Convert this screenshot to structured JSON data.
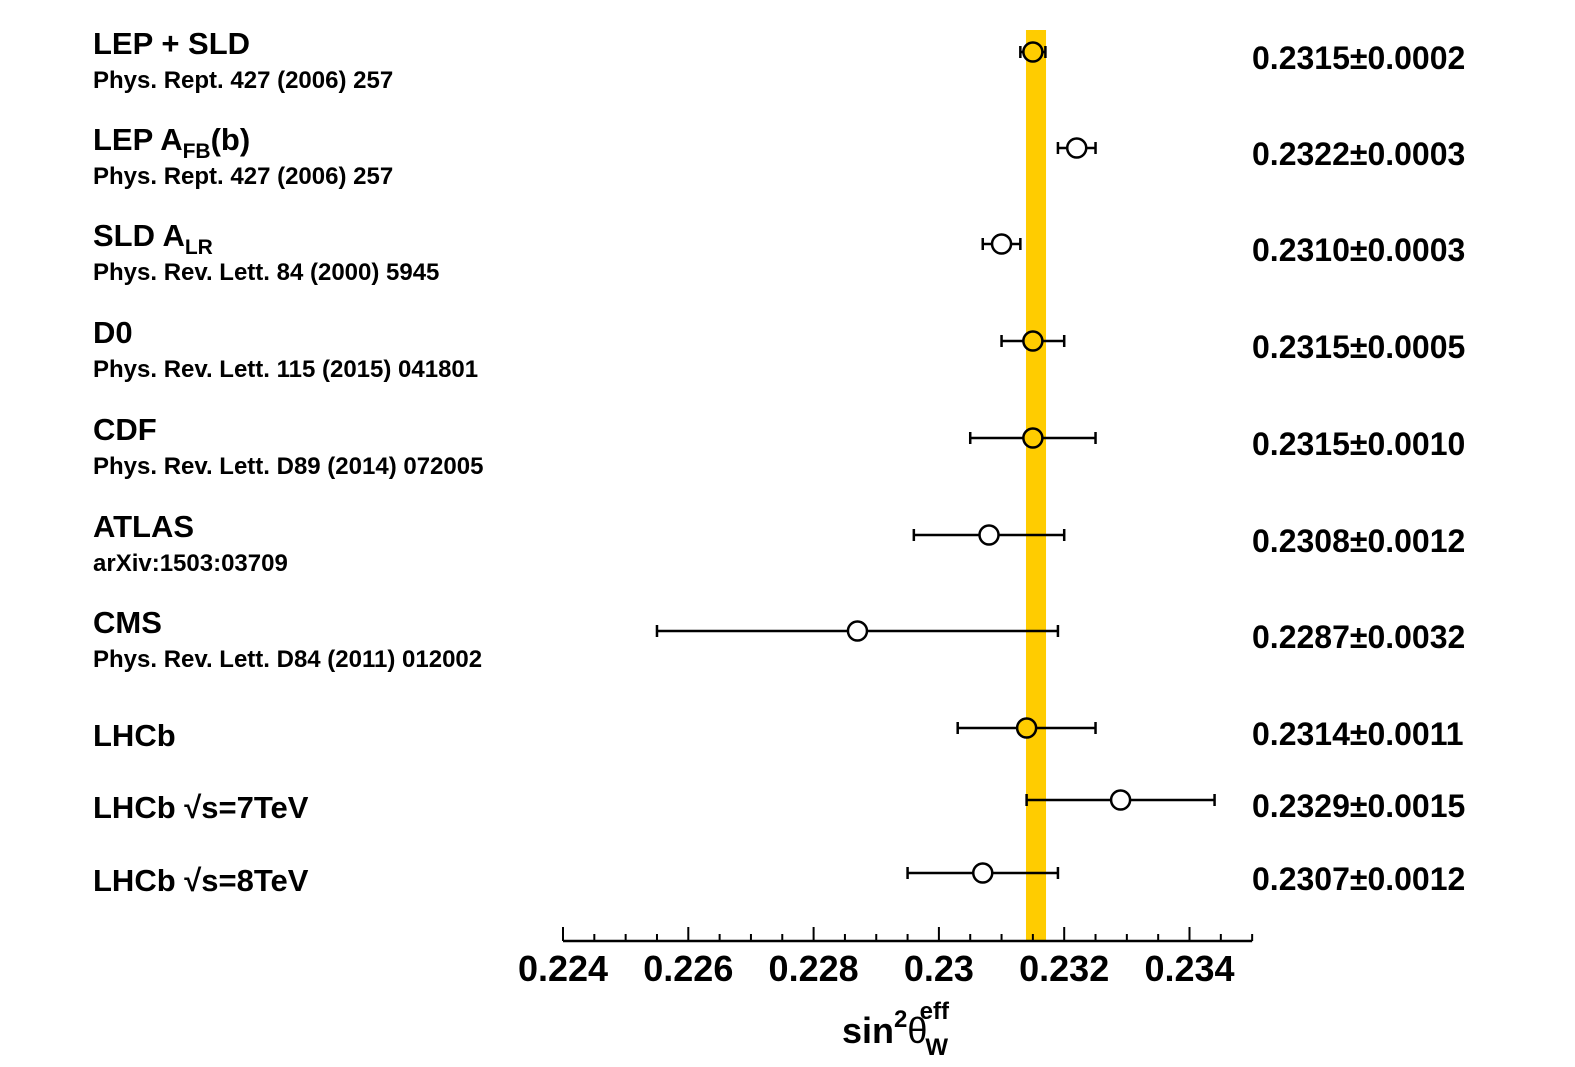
{
  "chart_data": {
    "type": "scatter",
    "subtype": "forest-plot-with-error-bars",
    "xlabel": {
      "main": "sin",
      "sup": "2",
      "symbol": "θ",
      "sub": "W",
      "sup2": "eff"
    },
    "xlim": [
      0.224,
      0.235
    ],
    "xticks": [
      "0.224",
      "0.226",
      "0.228",
      "0.23",
      "0.232",
      "0.234"
    ],
    "xtick_values": [
      0.224,
      0.226,
      0.228,
      0.23,
      0.232,
      0.234
    ],
    "minor_tick_step": 0.0005,
    "grid": false,
    "average_band": {
      "center": 0.23155,
      "halfwidth": 0.00016,
      "color": "#FFCC00"
    },
    "colors": {
      "filled_marker": "#FFCC00",
      "open_marker": "#FFFFFF",
      "line": "#000000"
    },
    "points": [
      {
        "label": [
          {
            "t": "LEP + SLD"
          }
        ],
        "ref": "Phys. Rept. 427 (2006) 257",
        "value": 0.2315,
        "error": 0.0002,
        "text": "0.2315±0.0002",
        "filled": true
      },
      {
        "label": [
          {
            "t": "LEP A"
          },
          {
            "t": "FB",
            "sub": true
          },
          {
            "t": "(b)"
          }
        ],
        "ref": "Phys. Rept. 427 (2006) 257",
        "value": 0.2322,
        "error": 0.0003,
        "text": "0.2322±0.0003",
        "filled": false
      },
      {
        "label": [
          {
            "t": "SLD A"
          },
          {
            "t": "LR",
            "sub": true
          }
        ],
        "ref": "Phys. Rev. Lett. 84 (2000) 5945",
        "value": 0.231,
        "error": 0.0003,
        "text": "0.2310±0.0003",
        "filled": false
      },
      {
        "label": [
          {
            "t": "D0"
          }
        ],
        "ref": "Phys. Rev. Lett. 115 (2015) 041801",
        "value": 0.2315,
        "error": 0.0005,
        "text": "0.2315±0.0005",
        "filled": true
      },
      {
        "label": [
          {
            "t": "CDF"
          }
        ],
        "ref": "Phys. Rev. Lett. D89 (2014) 072005",
        "value": 0.2315,
        "error": 0.001,
        "text": "0.2315±0.0010",
        "filled": true
      },
      {
        "label": [
          {
            "t": "ATLAS"
          }
        ],
        "ref": "arXiv:1503:03709",
        "value": 0.2308,
        "error": 0.0012,
        "text": "0.2308±0.0012",
        "filled": false
      },
      {
        "label": [
          {
            "t": "CMS"
          }
        ],
        "ref": "Phys. Rev. Lett. D84 (2011) 012002",
        "value": 0.2287,
        "error": 0.0032,
        "text": "0.2287±0.0032",
        "filled": false
      },
      {
        "label": [
          {
            "t": "LHCb"
          }
        ],
        "ref": "",
        "value": 0.2314,
        "error": 0.0011,
        "text": "0.2314±0.0011",
        "filled": true
      },
      {
        "label": [
          {
            "t": "LHCb √s=7TeV"
          }
        ],
        "ref": "",
        "value": 0.2329,
        "error": 0.0015,
        "text": "0.2329±0.0015",
        "filled": false
      },
      {
        "label": [
          {
            "t": "LHCb √s=8TeV"
          }
        ],
        "ref": "",
        "value": 0.2307,
        "error": 0.0012,
        "text": "0.2307±0.0012",
        "filled": false
      }
    ]
  }
}
